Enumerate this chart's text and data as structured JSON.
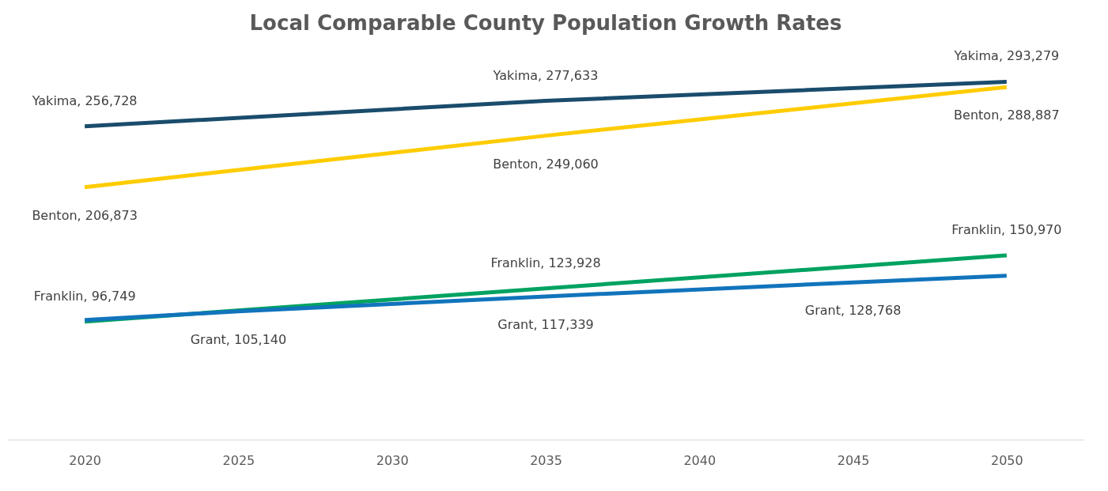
{
  "chart_data": {
    "type": "line",
    "title": "Local Comparable County Population Growth Rates",
    "xlim": [
      2017.5,
      2052.5
    ],
    "xticks": [
      2020,
      2025,
      2030,
      2035,
      2040,
      2045,
      2050
    ],
    "series": [
      {
        "color": "#1a4c6c",
        "x": [
          2020,
          2035,
          2050
        ],
        "values": [
          256728,
          277633,
          293279
        ],
        "value_labels": [
          "Yakima, 256,728",
          "Yakima, 277,633",
          "Yakima, 293,279"
        ]
      },
      {
        "color": "#ffcc00",
        "x": [
          2020,
          2035,
          2050
        ],
        "values": [
          206873,
          249060,
          288887
        ],
        "value_labels": [
          "Benton, 206,873",
          "Benton, 249,060",
          "Benton, 288,887"
        ]
      },
      {
        "color": "#00a261",
        "x": [
          2020,
          2035,
          2050
        ],
        "values": [
          96749,
          123928,
          150970
        ],
        "value_labels": [
          "Franklin, 96,749",
          "Franklin, 123,928",
          "Franklin, 150,970"
        ]
      },
      {
        "color": "#1174bc",
        "x": [
          2020,
          2025,
          2035,
          2045,
          2050
        ],
        "values": [
          98000,
          105140,
          117339,
          128768,
          134300
        ],
        "value_labels": [
          null,
          "Grant, 105,140",
          "Grant, 117,339",
          "Grant, 128,768",
          null
        ]
      }
    ],
    "tick_labels": "x",
    "grid": false,
    "legend": false,
    "marker": "none",
    "line_style": "solid"
  }
}
